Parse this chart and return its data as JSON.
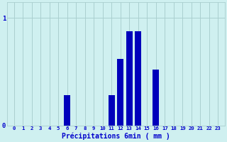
{
  "values": [
    0,
    0,
    0,
    0,
    0,
    0,
    0.28,
    0,
    0,
    0,
    0,
    0.28,
    0.62,
    0.88,
    0.88,
    0,
    0.52,
    0,
    0,
    0,
    0,
    0,
    0,
    0
  ],
  "categories": [
    0,
    1,
    2,
    3,
    4,
    5,
    6,
    7,
    8,
    9,
    10,
    11,
    12,
    13,
    14,
    15,
    16,
    17,
    18,
    19,
    20,
    21,
    22,
    23
  ],
  "bar_color": "#0000bb",
  "background_color": "#cff0f0",
  "grid_color": "#aacfcf",
  "text_color": "#0000cc",
  "xlabel": "Précipitations 6min ( mm )",
  "ylim": [
    0,
    1.15
  ],
  "yticks": [
    0,
    1
  ],
  "ytick_labels": [
    "0",
    "1"
  ]
}
